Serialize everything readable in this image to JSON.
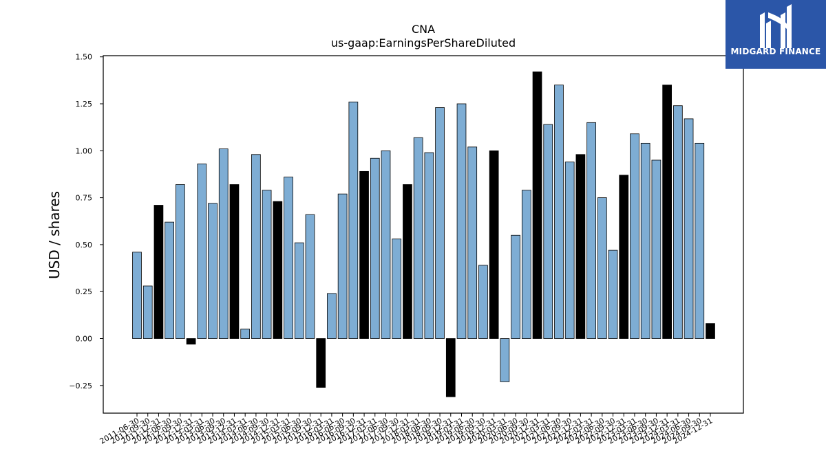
{
  "chart_data": {
    "type": "bar",
    "title": "CNA",
    "subtitle": "us-gaap:EarningsPerShareDiluted",
    "xlabel": "",
    "ylabel": "USD / shares",
    "ylim": [
      -0.38,
      1.5
    ],
    "yticks": [
      "1.50",
      "1.25",
      "1.00",
      "0.75",
      "0.50",
      "0.25",
      "0.00",
      "−0.25"
    ],
    "ytick_values": [
      1.5,
      1.25,
      1.0,
      0.75,
      0.5,
      0.25,
      0.0,
      -0.25
    ],
    "grid": false,
    "categories": [
      "2011-06-30",
      "2011-09-30",
      "2011-12-31",
      "2012-06-30",
      "2012-09-30",
      "2012-12-31",
      "2013-03-31",
      "2013-06-30",
      "2013-09-30",
      "2013-12-31",
      "2014-03-31",
      "2014-06-30",
      "2014-09-30",
      "2014-12-31",
      "2015-03-31",
      "2015-06-30",
      "2015-09-30",
      "2015-12-31",
      "2016-03-31",
      "2016-06-30",
      "2016-09-30",
      "2016-12-31",
      "2017-03-31",
      "2017-06-30",
      "2017-09-30",
      "2017-12-31",
      "2018-03-31",
      "2018-06-30",
      "2018-09-30",
      "2018-12-31",
      "2019-03-31",
      "2019-06-30",
      "2019-09-30",
      "2019-12-31",
      "2020-03-31",
      "2020-06-30",
      "2020-09-30",
      "2020-12-31",
      "2021-03-31",
      "2021-06-30",
      "2021-09-30",
      "2021-12-31",
      "2022-03-31",
      "2022-06-30",
      "2022-09-30",
      "2022-12-31",
      "2023-03-31",
      "2023-06-30",
      "2023-09-30",
      "2023-12-31",
      "2024-03-31",
      "2024-06-30",
      "2024-09-30",
      "2024-12-31"
    ],
    "values": [
      0.46,
      0.28,
      0.71,
      0.62,
      0.82,
      -0.03,
      0.93,
      0.72,
      1.01,
      0.82,
      0.05,
      0.98,
      0.79,
      0.73,
      0.86,
      0.51,
      0.66,
      -0.26,
      0.24,
      0.77,
      1.26,
      0.89,
      0.96,
      1.0,
      0.53,
      0.82,
      1.07,
      0.99,
      1.23,
      -0.31,
      1.25,
      1.02,
      0.39,
      1.0,
      -0.23,
      0.55,
      0.79,
      1.42,
      1.14,
      1.35,
      0.94,
      0.98,
      1.15,
      0.75,
      0.47,
      0.87,
      1.09,
      1.04,
      0.95,
      1.35,
      1.24,
      1.17,
      1.04,
      0.08
    ],
    "annual_flags": [
      0,
      0,
      1,
      0,
      0,
      1,
      0,
      0,
      0,
      1,
      0,
      0,
      0,
      1,
      0,
      0,
      0,
      1,
      0,
      0,
      0,
      1,
      0,
      0,
      0,
      1,
      0,
      0,
      0,
      1,
      0,
      0,
      0,
      1,
      0,
      0,
      0,
      1,
      0,
      0,
      0,
      1,
      0,
      0,
      0,
      1,
      0,
      0,
      0,
      1,
      0,
      0,
      0,
      1
    ],
    "colors": {
      "quarterly": "#7eadd4",
      "annual": "#000000",
      "edge": "#000000"
    }
  },
  "logo": {
    "text": "MIDGARD FINANCE",
    "color": "#2b56a8"
  }
}
